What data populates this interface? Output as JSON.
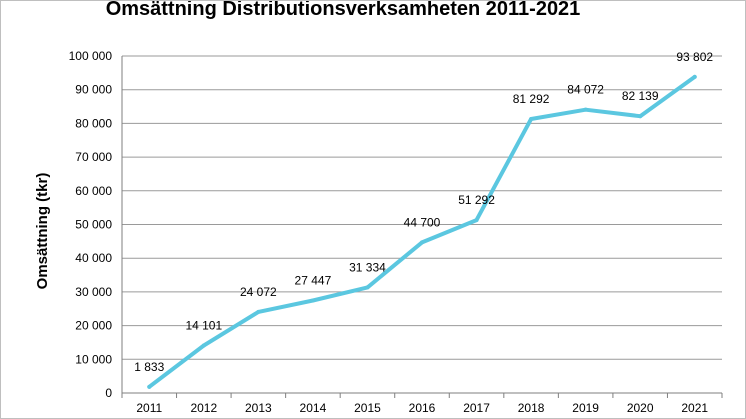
{
  "chart_data": {
    "type": "line",
    "title": "Omsättning Distributionsverksamheten 2011-2021",
    "ylabel": "Omsättning (tkr)",
    "xlabel": "",
    "categories": [
      "2011",
      "2012",
      "2013",
      "2014",
      "2015",
      "2016",
      "2017",
      "2018",
      "2019",
      "2020",
      "2021"
    ],
    "values": [
      1833,
      14101,
      24072,
      27447,
      31334,
      44700,
      51292,
      81292,
      84072,
      82139,
      93802
    ],
    "data_labels": [
      "1 833",
      "14 101",
      "24 072",
      "27 447",
      "31 334",
      "44 700",
      "51 292",
      "81 292",
      "84 072",
      "82 139",
      "93 802"
    ],
    "ylim": [
      0,
      100000
    ],
    "yticks": [
      0,
      10000,
      20000,
      30000,
      40000,
      50000,
      60000,
      70000,
      80000,
      90000,
      100000
    ],
    "ytick_labels": [
      "0",
      "10 000",
      "20 000",
      "30 000",
      "40 000",
      "50 000",
      "60 000",
      "70 000",
      "80 000",
      "90 000",
      "100 000"
    ],
    "grid": true,
    "legend": "none",
    "line_color": "#5bc7e0"
  }
}
